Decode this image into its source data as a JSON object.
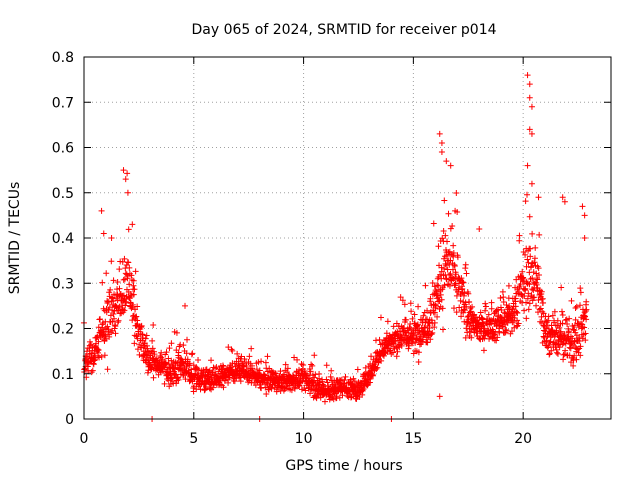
{
  "chart_data": {
    "type": "scatter",
    "title": "Day 065 of 2024, SRMTID for receiver p014",
    "xlabel": "GPS time / hours",
    "ylabel": "SRMTID / TECUs",
    "xlim": [
      0,
      24
    ],
    "ylim": [
      0,
      0.8
    ],
    "xticks": [
      0,
      5,
      10,
      15,
      20
    ],
    "xtick_labels": [
      "0",
      "5",
      "10",
      "15",
      "20"
    ],
    "yticks": [
      0,
      0.1,
      0.2,
      0.3,
      0.4,
      0.5,
      0.6,
      0.7,
      0.8
    ],
    "ytick_labels": [
      "0",
      "0.1",
      "0.2",
      "0.3",
      "0.4",
      "0.5",
      "0.6",
      "0.7",
      "0.8"
    ],
    "grid": true,
    "marker": "plus",
    "color": "#ff0000",
    "x_range_observed": [
      0,
      22.9
    ],
    "profile": [
      {
        "x": 0.0,
        "y": 0.12,
        "s": 0.04
      },
      {
        "x": 0.5,
        "y": 0.14,
        "s": 0.04
      },
      {
        "x": 1.0,
        "y": 0.22,
        "s": 0.1
      },
      {
        "x": 1.5,
        "y": 0.24,
        "s": 0.07
      },
      {
        "x": 2.0,
        "y": 0.3,
        "s": 0.12
      },
      {
        "x": 2.5,
        "y": 0.18,
        "s": 0.06
      },
      {
        "x": 3.0,
        "y": 0.13,
        "s": 0.04
      },
      {
        "x": 3.5,
        "y": 0.12,
        "s": 0.04
      },
      {
        "x": 4.0,
        "y": 0.1,
        "s": 0.04
      },
      {
        "x": 4.5,
        "y": 0.12,
        "s": 0.05
      },
      {
        "x": 5.0,
        "y": 0.09,
        "s": 0.03
      },
      {
        "x": 6.0,
        "y": 0.09,
        "s": 0.03
      },
      {
        "x": 7.0,
        "y": 0.11,
        "s": 0.03
      },
      {
        "x": 8.0,
        "y": 0.09,
        "s": 0.03
      },
      {
        "x": 9.0,
        "y": 0.08,
        "s": 0.03
      },
      {
        "x": 10.0,
        "y": 0.09,
        "s": 0.03
      },
      {
        "x": 11.0,
        "y": 0.06,
        "s": 0.03
      },
      {
        "x": 12.0,
        "y": 0.07,
        "s": 0.03
      },
      {
        "x": 12.5,
        "y": 0.06,
        "s": 0.03
      },
      {
        "x": 13.0,
        "y": 0.1,
        "s": 0.03
      },
      {
        "x": 13.5,
        "y": 0.15,
        "s": 0.04
      },
      {
        "x": 14.0,
        "y": 0.17,
        "s": 0.04
      },
      {
        "x": 14.5,
        "y": 0.19,
        "s": 0.05
      },
      {
        "x": 15.0,
        "y": 0.18,
        "s": 0.05
      },
      {
        "x": 15.5,
        "y": 0.2,
        "s": 0.06
      },
      {
        "x": 16.0,
        "y": 0.26,
        "s": 0.1
      },
      {
        "x": 16.5,
        "y": 0.35,
        "s": 0.12
      },
      {
        "x": 17.0,
        "y": 0.3,
        "s": 0.1
      },
      {
        "x": 17.5,
        "y": 0.22,
        "s": 0.05
      },
      {
        "x": 18.0,
        "y": 0.2,
        "s": 0.04
      },
      {
        "x": 18.5,
        "y": 0.2,
        "s": 0.04
      },
      {
        "x": 19.0,
        "y": 0.22,
        "s": 0.05
      },
      {
        "x": 19.5,
        "y": 0.22,
        "s": 0.05
      },
      {
        "x": 20.0,
        "y": 0.3,
        "s": 0.1
      },
      {
        "x": 20.5,
        "y": 0.33,
        "s": 0.14
      },
      {
        "x": 21.0,
        "y": 0.2,
        "s": 0.06
      },
      {
        "x": 21.5,
        "y": 0.18,
        "s": 0.06
      },
      {
        "x": 22.0,
        "y": 0.17,
        "s": 0.06
      },
      {
        "x": 22.5,
        "y": 0.18,
        "s": 0.07
      },
      {
        "x": 22.9,
        "y": 0.22,
        "s": 0.07
      }
    ],
    "peaks": [
      {
        "x": 0.8,
        "y": 0.46
      },
      {
        "x": 0.9,
        "y": 0.41
      },
      {
        "x": 1.8,
        "y": 0.55
      },
      {
        "x": 1.9,
        "y": 0.53
      },
      {
        "x": 2.0,
        "y": 0.5
      },
      {
        "x": 2.2,
        "y": 0.43
      },
      {
        "x": 4.6,
        "y": 0.25
      },
      {
        "x": 16.2,
        "y": 0.63
      },
      {
        "x": 16.3,
        "y": 0.61
      },
      {
        "x": 16.3,
        "y": 0.59
      },
      {
        "x": 16.5,
        "y": 0.57
      },
      {
        "x": 16.7,
        "y": 0.56
      },
      {
        "x": 16.9,
        "y": 0.46
      },
      {
        "x": 16.2,
        "y": 0.05
      },
      {
        "x": 18.0,
        "y": 0.42
      },
      {
        "x": 20.2,
        "y": 0.76
      },
      {
        "x": 20.3,
        "y": 0.74
      },
      {
        "x": 20.3,
        "y": 0.71
      },
      {
        "x": 20.4,
        "y": 0.69
      },
      {
        "x": 20.3,
        "y": 0.64
      },
      {
        "x": 20.4,
        "y": 0.63
      },
      {
        "x": 20.2,
        "y": 0.56
      },
      {
        "x": 20.4,
        "y": 0.52
      },
      {
        "x": 20.7,
        "y": 0.49
      },
      {
        "x": 21.8,
        "y": 0.49
      },
      {
        "x": 21.9,
        "y": 0.48
      },
      {
        "x": 22.7,
        "y": 0.47
      },
      {
        "x": 22.8,
        "y": 0.45
      },
      {
        "x": 22.8,
        "y": 0.4
      },
      {
        "x": 3.1,
        "y": 0.0
      },
      {
        "x": 8.0,
        "y": 0.0
      },
      {
        "x": 14.0,
        "y": 0.0
      }
    ]
  }
}
